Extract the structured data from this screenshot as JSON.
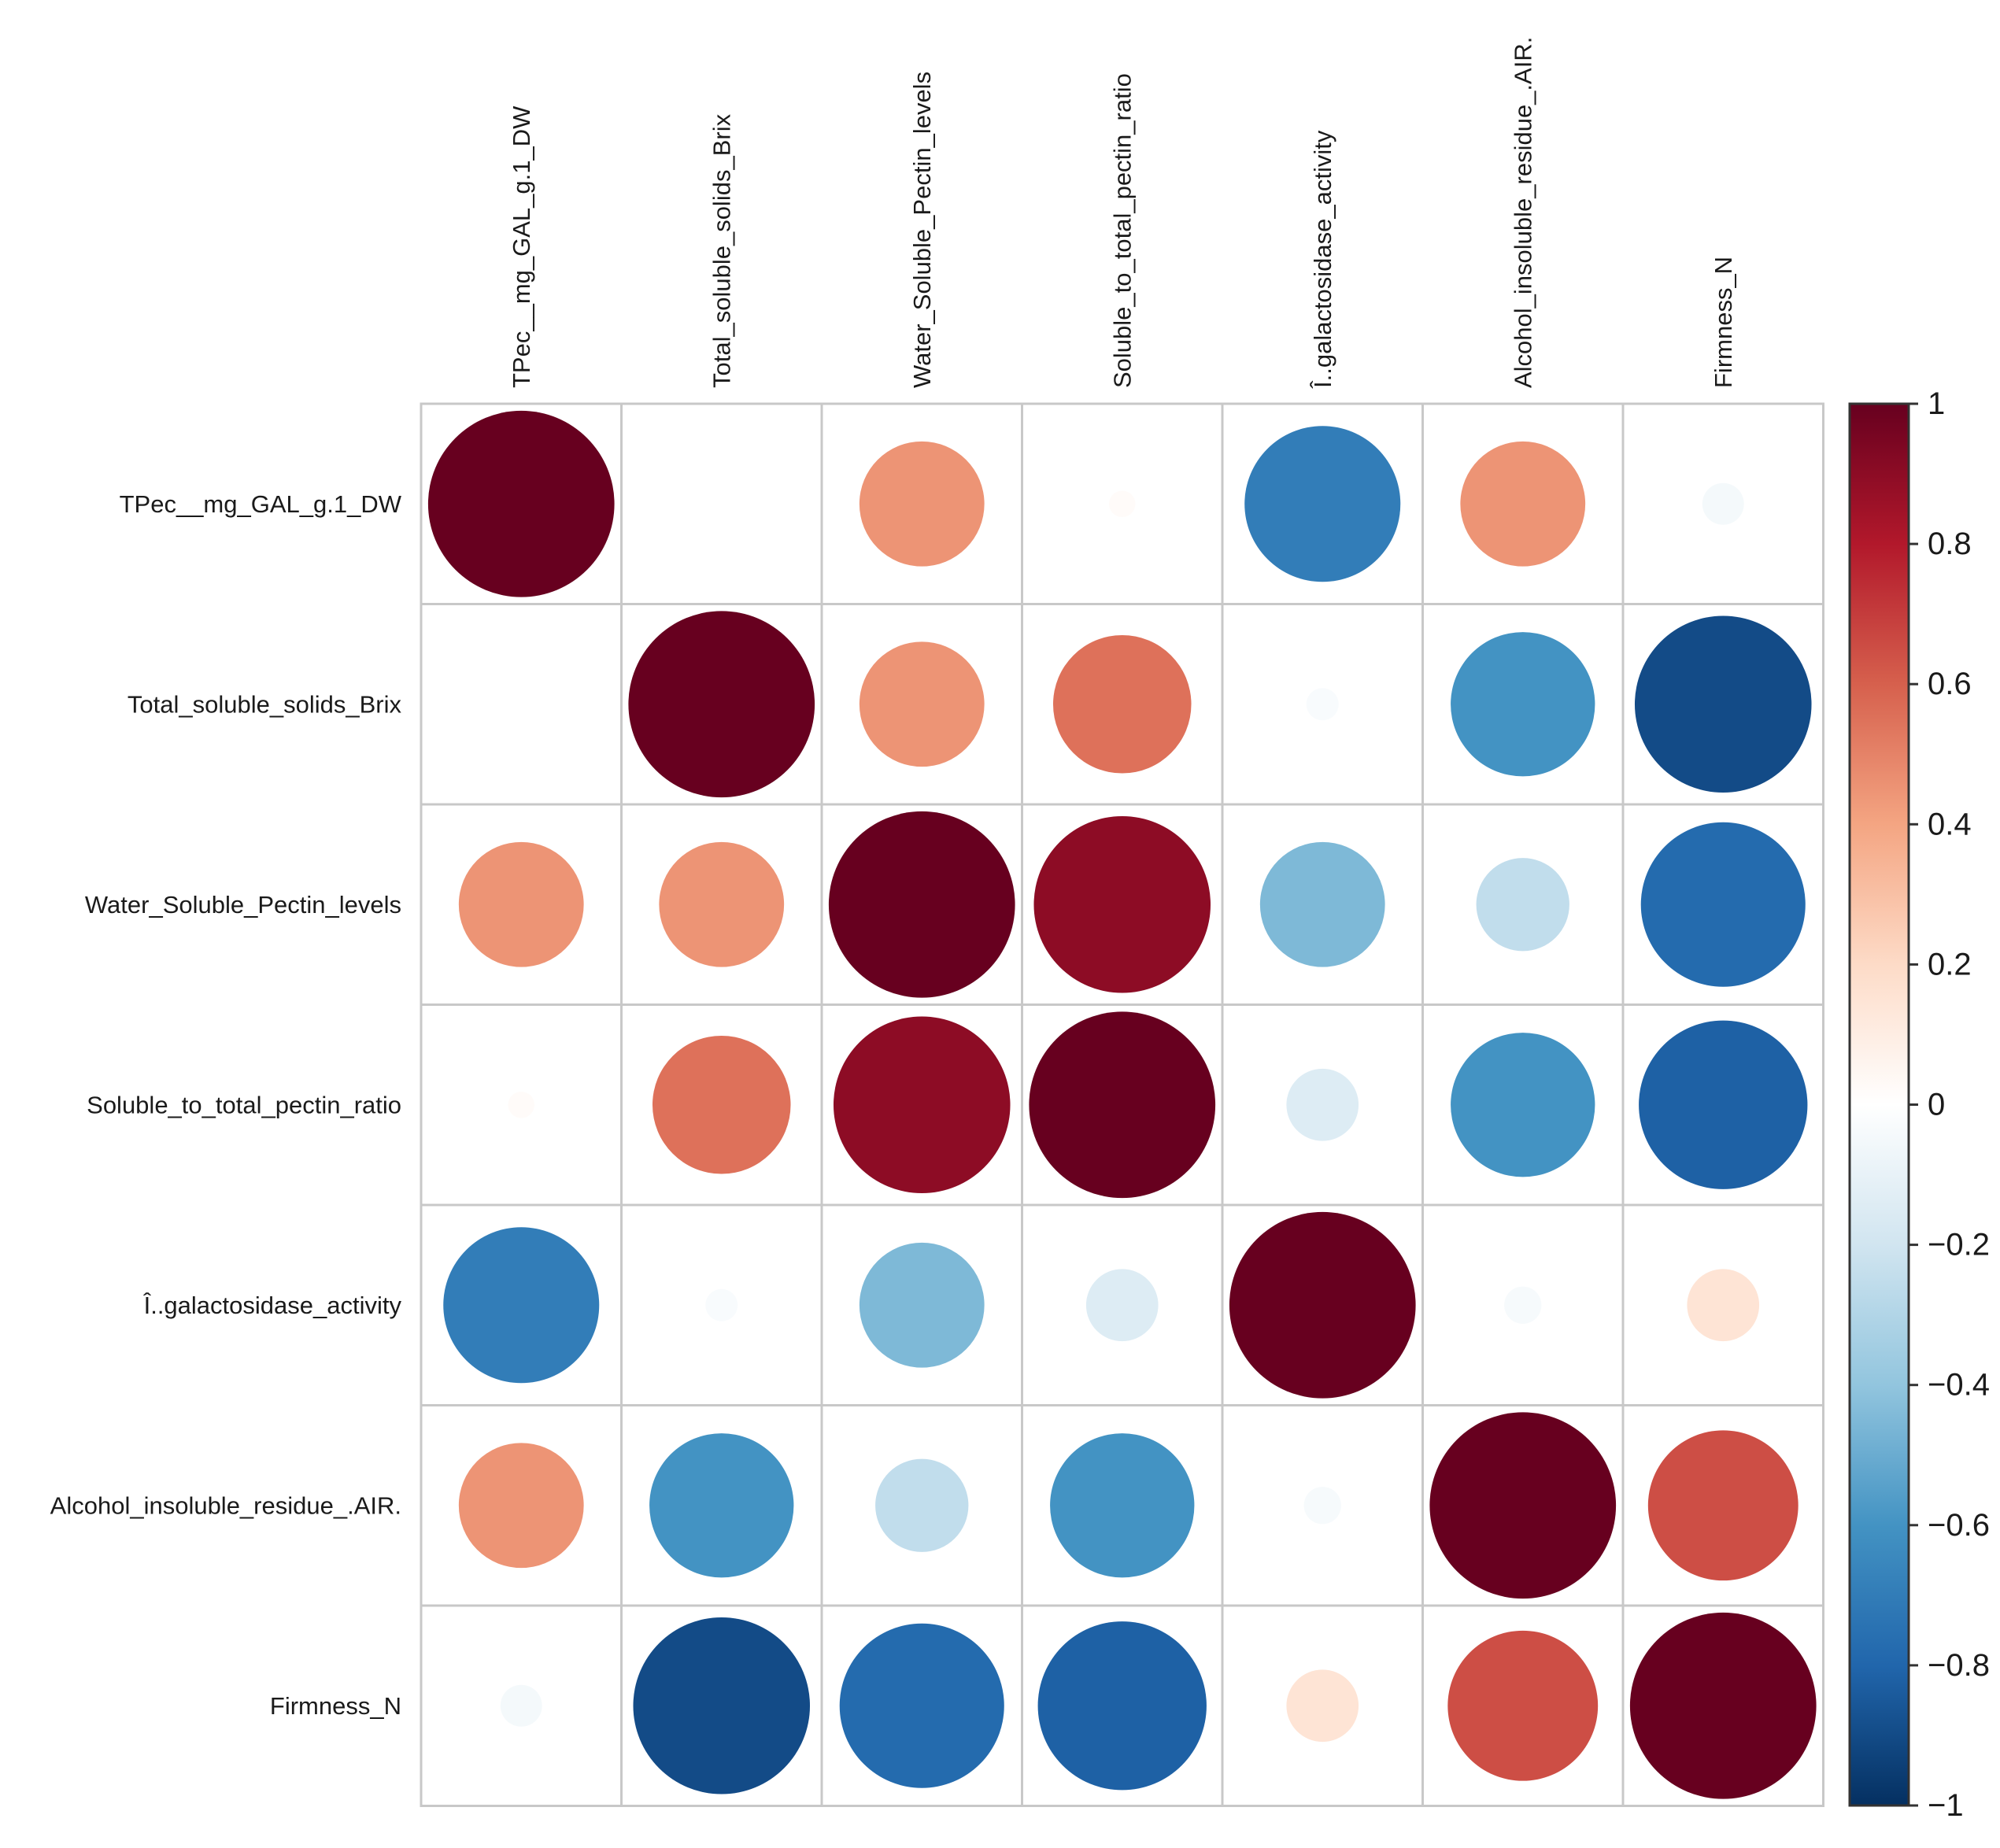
{
  "chart_data": {
    "type": "heatmap",
    "style": "correlation-circles",
    "variables": [
      "TPec__mg_GAL_g.1_DW",
      "Total_soluble_solids_Brix",
      "Water_Soluble_Pectin_levels",
      "Soluble_to_total_pectin_ratio",
      "Î..galactosidase_activity",
      "Alcohol_insoluble_residue_.AIR.",
      "Firmness_N"
    ],
    "matrix": [
      [
        1.0,
        0.0,
        0.45,
        0.02,
        -0.7,
        0.45,
        -0.05
      ],
      [
        0.0,
        1.0,
        0.45,
        0.55,
        -0.03,
        -0.6,
        -0.9
      ],
      [
        0.45,
        0.45,
        1.0,
        0.9,
        -0.45,
        -0.25,
        -0.78
      ],
      [
        0.02,
        0.55,
        0.9,
        1.0,
        -0.15,
        -0.6,
        -0.82
      ],
      [
        -0.7,
        -0.03,
        -0.45,
        -0.15,
        1.0,
        -0.04,
        0.15
      ],
      [
        0.45,
        -0.6,
        -0.25,
        -0.6,
        -0.04,
        1.0,
        0.65
      ],
      [
        -0.05,
        -0.9,
        -0.78,
        -0.82,
        0.15,
        0.65,
        1.0
      ]
    ],
    "colorbar": {
      "range": [
        -1,
        1
      ],
      "ticks": [
        "1",
        "0.8",
        "0.6",
        "0.4",
        "0.2",
        "0",
        "−0.2",
        "−0.4",
        "−0.6",
        "−0.8",
        "−1"
      ],
      "tick_values": [
        1,
        0.8,
        0.6,
        0.4,
        0.2,
        0,
        -0.2,
        -0.4,
        -0.6,
        -0.8,
        -1
      ],
      "colors": [
        "#67001F",
        "#B2182B",
        "#D6604D",
        "#F4A582",
        "#FDDBC7",
        "#FFFFFF",
        "#D1E5F0",
        "#92C5DE",
        "#4393C3",
        "#2166AC",
        "#053061"
      ]
    }
  }
}
